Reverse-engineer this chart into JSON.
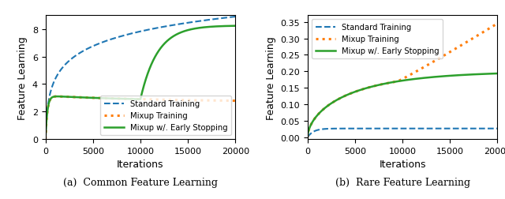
{
  "title_a": "(a)  Common Feature Learning",
  "title_b": "(b)  Rare Feature Learning",
  "xlabel": "Iterations",
  "ylabel": "Feature Learning",
  "legend_labels": [
    "Standard Training",
    "Mixup Training",
    "Mixup w/. Early Stopping"
  ],
  "colors": [
    "#1f77b4",
    "#ff7f0e",
    "#2ca02c"
  ],
  "xlim": [
    0,
    20000
  ],
  "ylim_a": [
    0,
    9
  ],
  "ylim_b": [
    -0.005,
    0.37
  ],
  "yticks_a": [
    0,
    2,
    4,
    6,
    8
  ],
  "yticks_b": [
    0.0,
    0.05,
    0.1,
    0.15,
    0.2,
    0.25,
    0.3,
    0.35
  ],
  "xticks": [
    0,
    5000,
    10000,
    15000,
    20000
  ]
}
